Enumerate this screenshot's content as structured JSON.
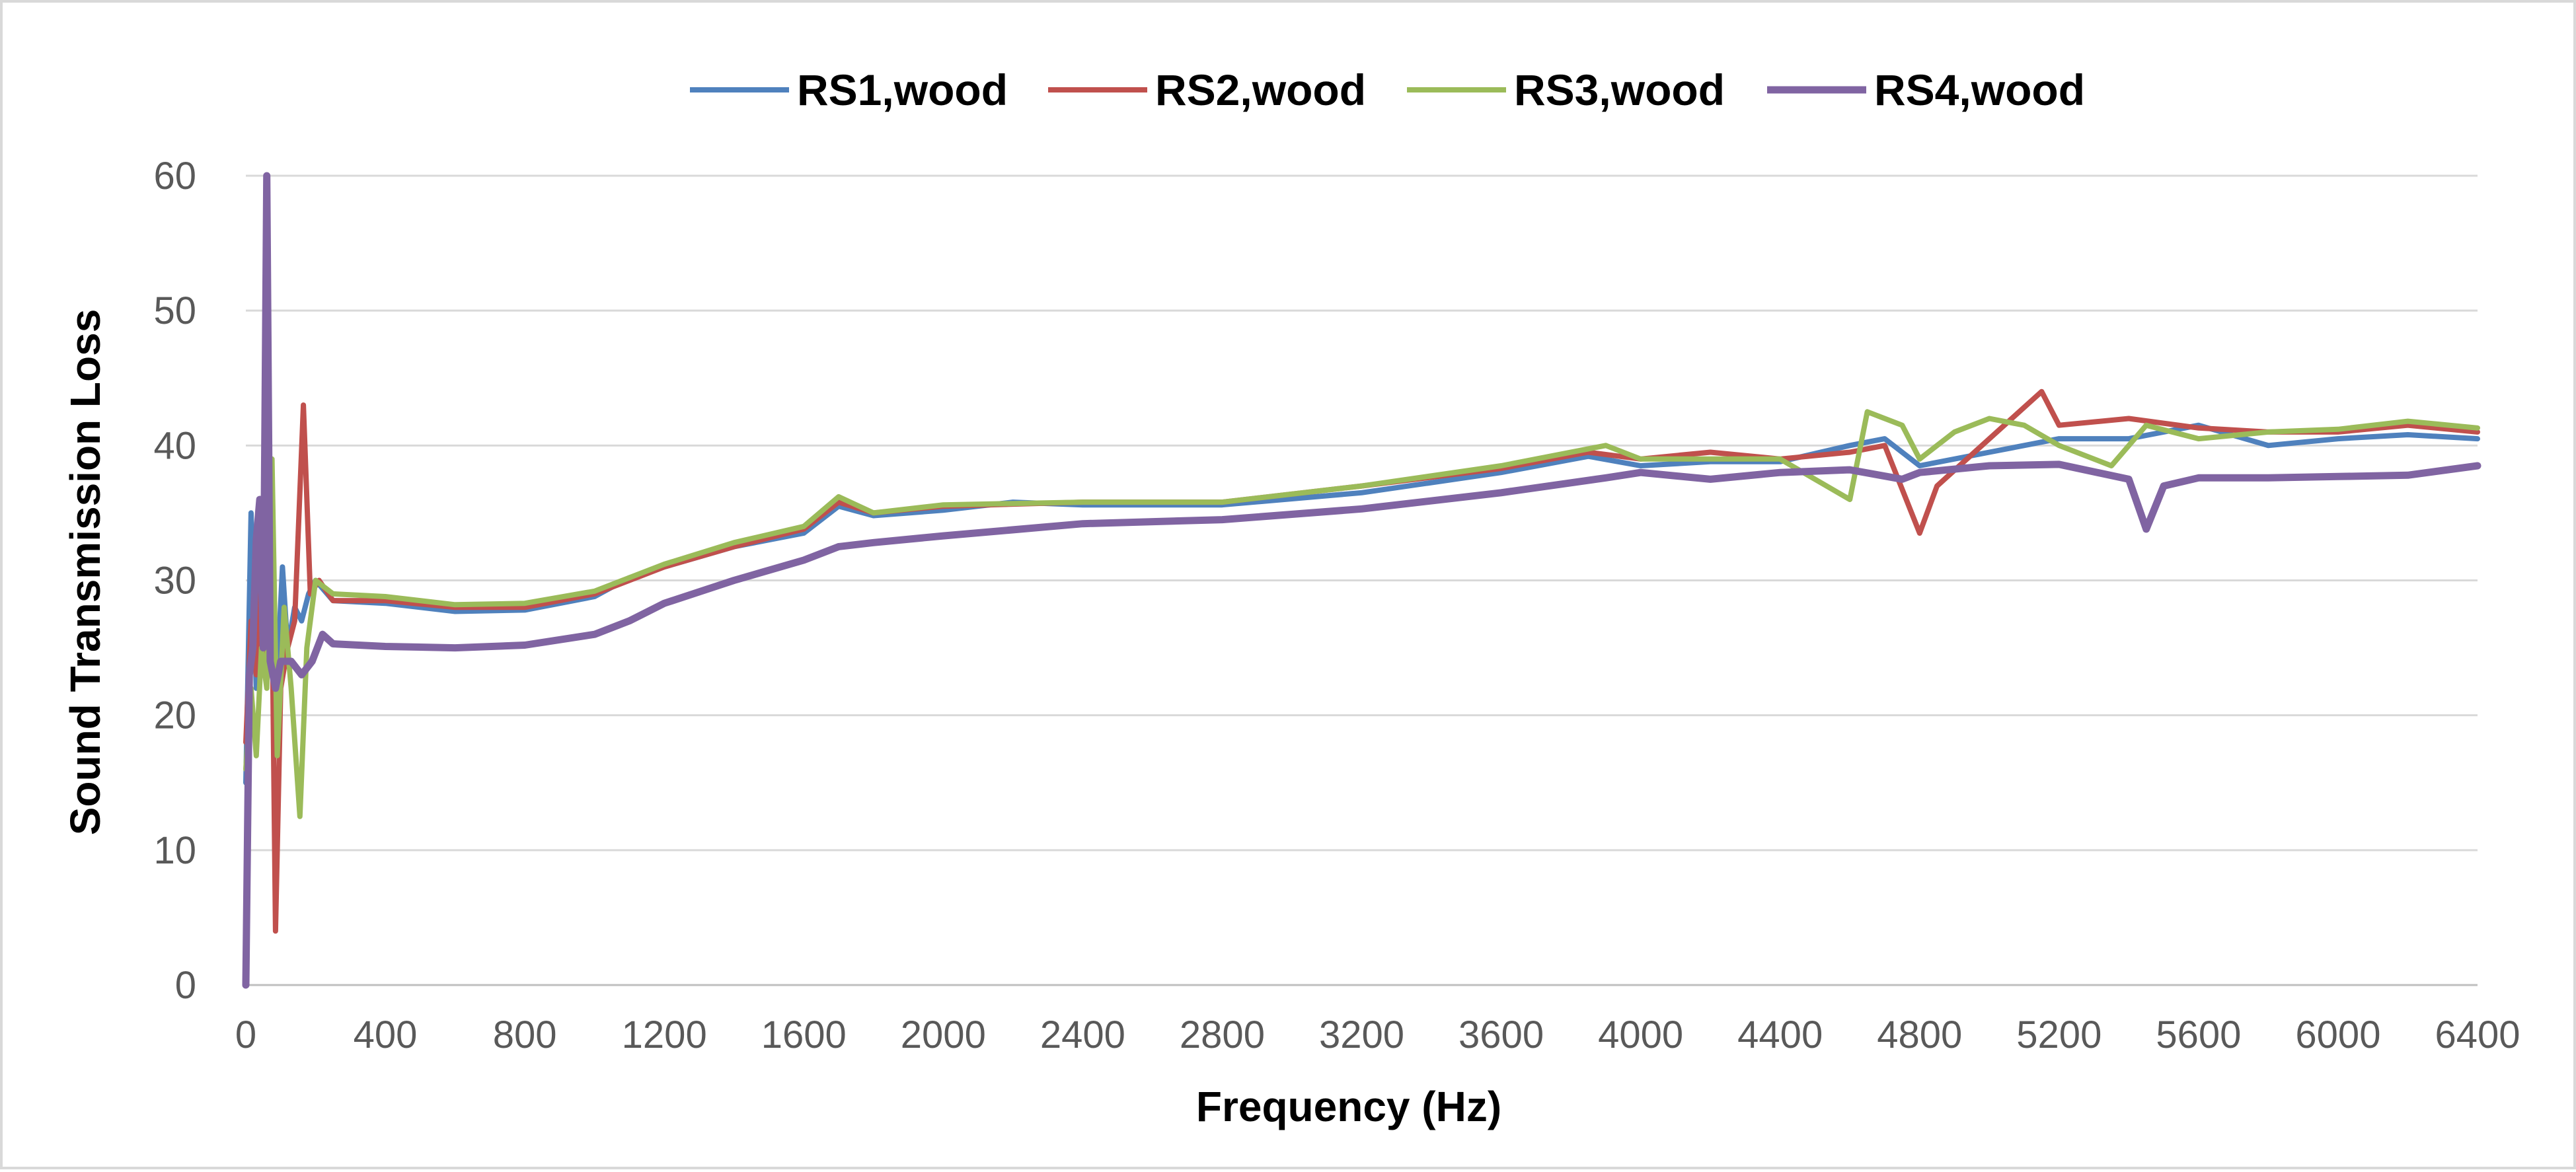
{
  "chart_data": {
    "type": "line",
    "title": "",
    "xlabel": "Frequency (Hz)",
    "ylabel": "Sound Transmission Loss",
    "xlim": [
      0,
      6400
    ],
    "ylim": [
      0,
      60
    ],
    "xticks": [
      0,
      400,
      800,
      1200,
      1600,
      2000,
      2400,
      2800,
      3200,
      3600,
      4000,
      4400,
      4800,
      5200,
      5600,
      6000,
      6400
    ],
    "yticks": [
      0,
      10,
      20,
      30,
      40,
      50,
      60
    ],
    "grid": {
      "horizontal": true,
      "vertical": false
    },
    "legend_position": "top",
    "series": [
      {
        "name": "RS1,wood",
        "color": "#4f81bd",
        "points": [
          [
            0,
            15
          ],
          [
            15,
            35
          ],
          [
            30,
            22
          ],
          [
            45,
            33
          ],
          [
            60,
            24
          ],
          [
            75,
            30
          ],
          [
            90,
            23
          ],
          [
            105,
            31
          ],
          [
            120,
            25
          ],
          [
            140,
            28
          ],
          [
            160,
            27
          ],
          [
            180,
            29
          ],
          [
            200,
            30
          ],
          [
            250,
            28.5
          ],
          [
            400,
            28.3
          ],
          [
            600,
            27.7
          ],
          [
            800,
            27.8
          ],
          [
            1000,
            28.8
          ],
          [
            1100,
            30.2
          ],
          [
            1200,
            31
          ],
          [
            1400,
            32.5
          ],
          [
            1600,
            33.5
          ],
          [
            1700,
            35.5
          ],
          [
            1800,
            34.8
          ],
          [
            2000,
            35.2
          ],
          [
            2200,
            35.8
          ],
          [
            2400,
            35.6
          ],
          [
            2800,
            35.6
          ],
          [
            3200,
            36.5
          ],
          [
            3600,
            38
          ],
          [
            3850,
            39.2
          ],
          [
            4000,
            38.5
          ],
          [
            4200,
            38.8
          ],
          [
            4400,
            38.8
          ],
          [
            4600,
            40
          ],
          [
            4700,
            40.5
          ],
          [
            4800,
            38.5
          ],
          [
            5000,
            39.5
          ],
          [
            5200,
            40.5
          ],
          [
            5400,
            40.5
          ],
          [
            5600,
            41.5
          ],
          [
            5800,
            40
          ],
          [
            6000,
            40.5
          ],
          [
            6200,
            40.8
          ],
          [
            6400,
            40.5
          ]
        ]
      },
      {
        "name": "RS2,wood",
        "color": "#c0504d",
        "points": [
          [
            0,
            18
          ],
          [
            15,
            27
          ],
          [
            30,
            23
          ],
          [
            45,
            30
          ],
          [
            60,
            24
          ],
          [
            75,
            28
          ],
          [
            85,
            4
          ],
          [
            100,
            22
          ],
          [
            120,
            25
          ],
          [
            140,
            27
          ],
          [
            165,
            43
          ],
          [
            185,
            29
          ],
          [
            210,
            30
          ],
          [
            250,
            28.5
          ],
          [
            400,
            28.5
          ],
          [
            600,
            28
          ],
          [
            800,
            28
          ],
          [
            1000,
            29
          ],
          [
            1200,
            31
          ],
          [
            1400,
            32.5
          ],
          [
            1600,
            33.8
          ],
          [
            1700,
            35.8
          ],
          [
            1800,
            35
          ],
          [
            2000,
            35.5
          ],
          [
            2400,
            35.8
          ],
          [
            2800,
            35.8
          ],
          [
            3200,
            37
          ],
          [
            3600,
            38.3
          ],
          [
            3850,
            39.5
          ],
          [
            4000,
            39
          ],
          [
            4200,
            39.5
          ],
          [
            4400,
            39
          ],
          [
            4600,
            39.5
          ],
          [
            4700,
            40
          ],
          [
            4800,
            33.5
          ],
          [
            4850,
            37
          ],
          [
            5000,
            40.5
          ],
          [
            5150,
            44
          ],
          [
            5200,
            41.5
          ],
          [
            5400,
            42
          ],
          [
            5600,
            41.3
          ],
          [
            5800,
            41
          ],
          [
            6000,
            41
          ],
          [
            6200,
            41.5
          ],
          [
            6400,
            41
          ]
        ]
      },
      {
        "name": "RS3,wood",
        "color": "#9bbb59",
        "points": [
          [
            0,
            16
          ],
          [
            15,
            22
          ],
          [
            30,
            17
          ],
          [
            45,
            25
          ],
          [
            60,
            22
          ],
          [
            75,
            39
          ],
          [
            90,
            17
          ],
          [
            110,
            28
          ],
          [
            130,
            22
          ],
          [
            155,
            12.5
          ],
          [
            175,
            25
          ],
          [
            200,
            30
          ],
          [
            250,
            29
          ],
          [
            400,
            28.8
          ],
          [
            600,
            28.2
          ],
          [
            800,
            28.3
          ],
          [
            1000,
            29.2
          ],
          [
            1200,
            31.2
          ],
          [
            1400,
            32.8
          ],
          [
            1600,
            34
          ],
          [
            1700,
            36.2
          ],
          [
            1800,
            35
          ],
          [
            2000,
            35.6
          ],
          [
            2400,
            35.8
          ],
          [
            2800,
            35.8
          ],
          [
            3200,
            37
          ],
          [
            3600,
            38.5
          ],
          [
            3900,
            40
          ],
          [
            4000,
            39
          ],
          [
            4400,
            39
          ],
          [
            4600,
            36
          ],
          [
            4650,
            42.5
          ],
          [
            4750,
            41.5
          ],
          [
            4800,
            39
          ],
          [
            4900,
            41
          ],
          [
            5000,
            42
          ],
          [
            5100,
            41.5
          ],
          [
            5200,
            40
          ],
          [
            5350,
            38.5
          ],
          [
            5450,
            41.5
          ],
          [
            5600,
            40.5
          ],
          [
            5800,
            41
          ],
          [
            6000,
            41.2
          ],
          [
            6200,
            41.8
          ],
          [
            6400,
            41.3
          ]
        ]
      },
      {
        "name": "RS4,wood",
        "color": "#8064a2",
        "points": [
          [
            0,
            0
          ],
          [
            10,
            23
          ],
          [
            20,
            25
          ],
          [
            30,
            33
          ],
          [
            40,
            36
          ],
          [
            50,
            25
          ],
          [
            60,
            60
          ],
          [
            70,
            24
          ],
          [
            85,
            22
          ],
          [
            100,
            24
          ],
          [
            130,
            24
          ],
          [
            160,
            23
          ],
          [
            190,
            24
          ],
          [
            220,
            26
          ],
          [
            250,
            25.3
          ],
          [
            400,
            25.1
          ],
          [
            600,
            25
          ],
          [
            800,
            25.2
          ],
          [
            1000,
            26
          ],
          [
            1100,
            27
          ],
          [
            1200,
            28.3
          ],
          [
            1400,
            30
          ],
          [
            1600,
            31.5
          ],
          [
            1700,
            32.5
          ],
          [
            1800,
            32.8
          ],
          [
            2000,
            33.3
          ],
          [
            2400,
            34.2
          ],
          [
            2800,
            34.5
          ],
          [
            3200,
            35.3
          ],
          [
            3600,
            36.5
          ],
          [
            3900,
            37.6
          ],
          [
            4000,
            38
          ],
          [
            4200,
            37.5
          ],
          [
            4400,
            38
          ],
          [
            4600,
            38.2
          ],
          [
            4750,
            37.5
          ],
          [
            4800,
            38
          ],
          [
            5000,
            38.5
          ],
          [
            5200,
            38.6
          ],
          [
            5400,
            37.5
          ],
          [
            5450,
            33.8
          ],
          [
            5500,
            37
          ],
          [
            5600,
            37.6
          ],
          [
            5800,
            37.6
          ],
          [
            6000,
            37.7
          ],
          [
            6200,
            37.8
          ],
          [
            6400,
            38.5
          ]
        ]
      }
    ]
  }
}
